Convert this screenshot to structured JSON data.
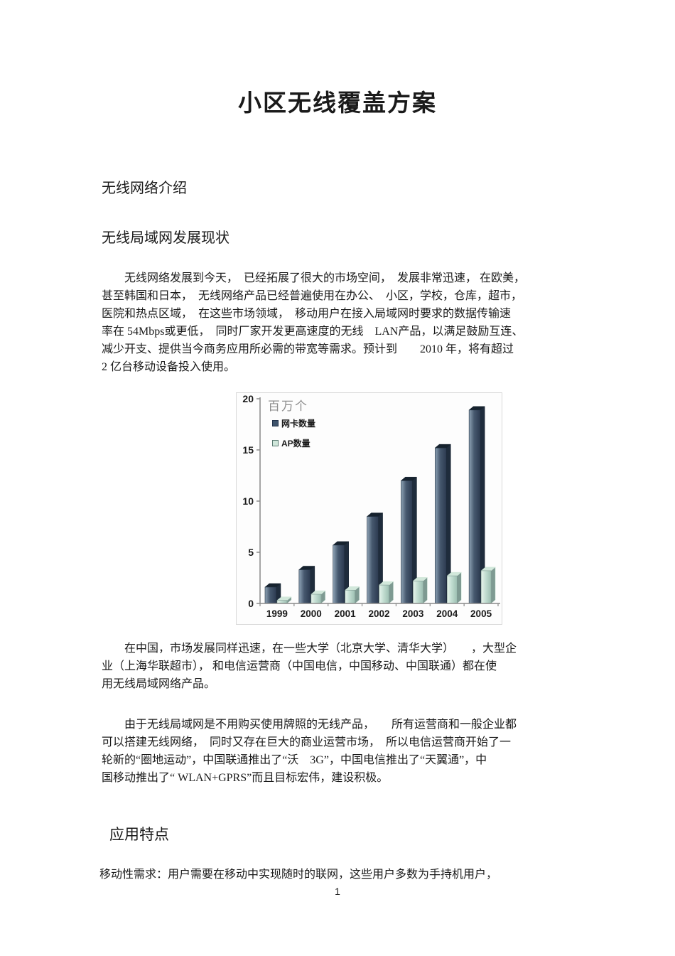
{
  "doc": {
    "title": "小区无线覆盖方案",
    "heading1": "无线网络介绍",
    "heading2": "无线局域网发展现状",
    "heading3": "应用特点",
    "page_number": "1"
  },
  "paragraphs": {
    "p1": [
      "　　无线网络发展到今天，　已经拓展了很大的市场空间，　发展非常迅速， 在欧美，",
      "甚至韩国和日本，　无线网络产品已经普遍使用在办公、　小区，学校，仓库，超市，",
      "医院和热点区域，　在这些市场领域，　移动用户在接入局域网时要求的数据传输速",
      "率在 54Mbps或更低，　同时厂家开发更高速度的无线　LAN产品，以满足鼓励互连、",
      "减少开支、提供当今商务应用所必需的带宽等需求。预计到　　2010 年，将有超过",
      "2 亿台移动设备投入使用。"
    ],
    "p2": [
      "　　在中国，市场发展同样迅速，在一些大学（北京大学、清华大学）　　，大型企",
      "业（上海华联超市）， 和电信运营商（中国电信，中国移动、中国联通）都在使",
      "用无线局域网络产品。"
    ],
    "p3": [
      "　　由于无线局域网是不用购买使用牌照的无线产品，　　所有运营商和一般企业都",
      "可以搭建无线网络，　同时又存在巨大的商业运营市场，　所以电信运营商开始了一",
      "轮新的“圈地运动”，中国联通推出了“沃　3G”，中国电信推出了“天翼通”，中",
      "国移动推出了“ WLAN+GPRS”而且目标宏伟，建设积极。"
    ],
    "p4": [
      "移动性需求：用户需要在移动中实现随时的联网，这些用户多数为手持机用户，"
    ]
  },
  "chart_data": {
    "type": "bar",
    "title": "",
    "unit_label": "百万个",
    "categories": [
      "1999",
      "2000",
      "2001",
      "2002",
      "2003",
      "2004",
      "2005"
    ],
    "series": [
      {
        "name": "网卡数量",
        "values": [
          1.6,
          3.3,
          5.7,
          8.5,
          12.0,
          15.2,
          18.9
        ],
        "colors": {
          "light": "#8fa4b6",
          "mid": "#46586e",
          "dark": "#2c3a50",
          "top": "#16222e",
          "side": "#1f2c3c"
        }
      },
      {
        "name": "AP数量",
        "values": [
          0.3,
          0.9,
          1.3,
          1.8,
          2.2,
          2.7,
          3.2
        ],
        "colors": {
          "light": "#e8f4ec",
          "mid": "#c2ddd1",
          "dark": "#9dbfb2",
          "top": "#d2e8db",
          "side": "#7e9a92"
        }
      }
    ],
    "xlabel": "",
    "ylabel": "",
    "ylim": [
      0,
      20
    ],
    "yticks": [
      0,
      5,
      10,
      15,
      20
    ],
    "legend_position": "top-left",
    "grid": false,
    "style": "3d-bar",
    "axis_color": "#8a8a8a",
    "tick_label_color": "#1a1a1a"
  }
}
